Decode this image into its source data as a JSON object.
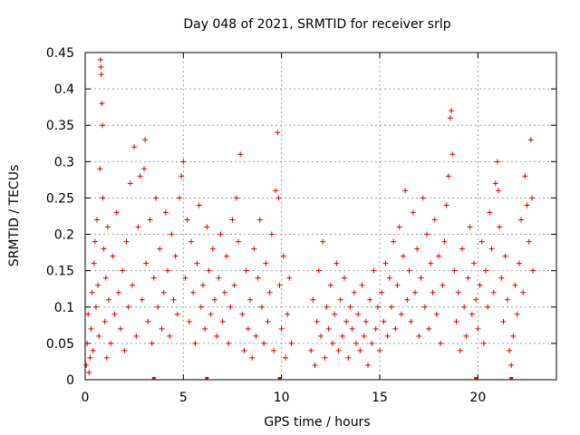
{
  "chart_data": {
    "type": "scatter",
    "title": "Day 048 of 2021, SRMTID for receiver srlp",
    "xlabel": "GPS time / hours",
    "ylabel": "SRMTID / TECUs",
    "xlim": [
      0,
      24
    ],
    "ylim": [
      0,
      0.45
    ],
    "xticks": [
      0,
      5,
      10,
      15,
      20
    ],
    "xtick_labels": [
      "0",
      "5",
      "10",
      "15",
      "20"
    ],
    "yticks": [
      0,
      0.05,
      0.1,
      0.15,
      0.2,
      0.25,
      0.3,
      0.35,
      0.4,
      0.45
    ],
    "ytick_labels": [
      "0",
      "0.05",
      "0.1",
      "0.15",
      "0.2",
      "0.25",
      "0.3",
      "0.35",
      "0.4",
      "0.45"
    ],
    "grid": true,
    "marker": "+",
    "marker_color": "#dd0000",
    "series": [
      {
        "name": "SRMTID",
        "points": [
          [
            0.05,
            0.02
          ],
          [
            0.1,
            0.05
          ],
          [
            0.15,
            0.09
          ],
          [
            0.2,
            0.01
          ],
          [
            0.25,
            0.03
          ],
          [
            0.3,
            0.07
          ],
          [
            0.35,
            0.12
          ],
          [
            0.4,
            0.04
          ],
          [
            0.45,
            0.16
          ],
          [
            0.5,
            0.19
          ],
          [
            0.55,
            0.1
          ],
          [
            0.6,
            0.22
          ],
          [
            0.65,
            0.13
          ],
          [
            0.7,
            0.06
          ],
          [
            0.75,
            0.29
          ],
          [
            0.78,
            0.44
          ],
          [
            0.8,
            0.43
          ],
          [
            0.82,
            0.42
          ],
          [
            0.85,
            0.38
          ],
          [
            0.88,
            0.35
          ],
          [
            0.9,
            0.25
          ],
          [
            0.95,
            0.18
          ],
          [
            1.0,
            0.08
          ],
          [
            1.05,
            0.14
          ],
          [
            1.1,
            0.03
          ],
          [
            1.15,
            0.21
          ],
          [
            1.2,
            0.11
          ],
          [
            1.3,
            0.05
          ],
          [
            1.4,
            0.17
          ],
          [
            1.5,
            0.09
          ],
          [
            1.6,
            0.23
          ],
          [
            1.7,
            0.12
          ],
          [
            1.8,
            0.07
          ],
          [
            1.9,
            0.15
          ],
          [
            2.0,
            0.04
          ],
          [
            2.1,
            0.19
          ],
          [
            2.2,
            0.1
          ],
          [
            2.3,
            0.27
          ],
          [
            2.4,
            0.13
          ],
          [
            2.5,
            0.32
          ],
          [
            2.6,
            0.06
          ],
          [
            2.7,
            0.21
          ],
          [
            2.8,
            0.28
          ],
          [
            2.9,
            0.11
          ],
          [
            3.0,
            0.29
          ],
          [
            3.05,
            0.33
          ],
          [
            3.1,
            0.16
          ],
          [
            3.2,
            0.08
          ],
          [
            3.3,
            0.22
          ],
          [
            3.4,
            0.05
          ],
          [
            3.5,
            0.14
          ],
          [
            3.6,
            0.25
          ],
          [
            3.7,
            0.1
          ],
          [
            3.8,
            0.18
          ],
          [
            3.9,
            0.07
          ],
          [
            4.0,
            0.12
          ],
          [
            4.1,
            0.23
          ],
          [
            4.2,
            0.15
          ],
          [
            4.3,
            0.06
          ],
          [
            4.4,
            0.2
          ],
          [
            4.5,
            0.11
          ],
          [
            4.6,
            0.17
          ],
          [
            4.7,
            0.09
          ],
          [
            4.8,
            0.25
          ],
          [
            4.9,
            0.28
          ],
          [
            5.0,
            0.3
          ],
          [
            5.1,
            0.14
          ],
          [
            5.2,
            0.22
          ],
          [
            5.3,
            0.08
          ],
          [
            5.4,
            0.19
          ],
          [
            5.5,
            0.12
          ],
          [
            5.6,
            0.05
          ],
          [
            5.7,
            0.16
          ],
          [
            5.8,
            0.24
          ],
          [
            5.9,
            0.1
          ],
          [
            6.0,
            0.13
          ],
          [
            6.1,
            0.07
          ],
          [
            6.2,
            0.21
          ],
          [
            6.3,
            0.15
          ],
          [
            6.4,
            0.09
          ],
          [
            6.5,
            0.18
          ],
          [
            6.6,
            0.11
          ],
          [
            6.7,
            0.06
          ],
          [
            6.8,
            0.14
          ],
          [
            6.9,
            0.2
          ],
          [
            7.0,
            0.08
          ],
          [
            7.1,
            0.12
          ],
          [
            7.2,
            0.17
          ],
          [
            7.3,
            0.05
          ],
          [
            7.4,
            0.1
          ],
          [
            7.5,
            0.22
          ],
          [
            7.6,
            0.13
          ],
          [
            7.7,
            0.25
          ],
          [
            7.8,
            0.19
          ],
          [
            7.9,
            0.31
          ],
          [
            8.0,
            0.09
          ],
          [
            8.1,
            0.04
          ],
          [
            8.2,
            0.15
          ],
          [
            8.3,
            0.07
          ],
          [
            8.4,
            0.11
          ],
          [
            8.5,
            0.03
          ],
          [
            8.6,
            0.18
          ],
          [
            8.7,
            0.06
          ],
          [
            8.8,
            0.14
          ],
          [
            8.9,
            0.22
          ],
          [
            9.0,
            0.1
          ],
          [
            9.1,
            0.05
          ],
          [
            9.2,
            0.16
          ],
          [
            9.3,
            0.08
          ],
          [
            9.4,
            0.12
          ],
          [
            9.5,
            0.2
          ],
          [
            9.6,
            0.04
          ],
          [
            9.7,
            0.26
          ],
          [
            9.8,
            0.34
          ],
          [
            9.85,
            0.25
          ],
          [
            9.9,
            0.13
          ],
          [
            10.0,
            0.07
          ],
          [
            10.1,
            0.17
          ],
          [
            10.2,
            0.03
          ],
          [
            10.3,
            0.09
          ],
          [
            10.4,
            0.14
          ],
          [
            10.5,
            0.05
          ],
          [
            11.5,
            0.04
          ],
          [
            11.6,
            0.11
          ],
          [
            11.7,
            0.02
          ],
          [
            11.8,
            0.08
          ],
          [
            11.9,
            0.15
          ],
          [
            12.0,
            0.06
          ],
          [
            12.1,
            0.19
          ],
          [
            12.2,
            0.03
          ],
          [
            12.3,
            0.1
          ],
          [
            12.4,
            0.07
          ],
          [
            12.5,
            0.13
          ],
          [
            12.6,
            0.05
          ],
          [
            12.7,
            0.09
          ],
          [
            12.8,
            0.16
          ],
          [
            12.9,
            0.04
          ],
          [
            13.0,
            0.11
          ],
          [
            13.1,
            0.06
          ],
          [
            13.2,
            0.14
          ],
          [
            13.3,
            0.08
          ],
          [
            13.4,
            0.03
          ],
          [
            13.5,
            0.1
          ],
          [
            13.6,
            0.07
          ],
          [
            13.7,
            0.12
          ],
          [
            13.8,
            0.05
          ],
          [
            13.9,
            0.09
          ],
          [
            14.0,
            0.04
          ],
          [
            14.1,
            0.13
          ],
          [
            14.2,
            0.06
          ],
          [
            14.3,
            0.08
          ],
          [
            14.4,
            0.02
          ],
          [
            14.5,
            0.11
          ],
          [
            14.6,
            0.05
          ],
          [
            14.7,
            0.15
          ],
          [
            14.8,
            0.07
          ],
          [
            14.9,
            0.1
          ],
          [
            15.0,
            0.04
          ],
          [
            15.1,
            0.12
          ],
          [
            15.2,
            0.08
          ],
          [
            15.3,
            0.16
          ],
          [
            15.4,
            0.06
          ],
          [
            15.5,
            0.14
          ],
          [
            15.6,
            0.1
          ],
          [
            15.7,
            0.19
          ],
          [
            15.8,
            0.07
          ],
          [
            15.9,
            0.13
          ],
          [
            16.0,
            0.21
          ],
          [
            16.1,
            0.09
          ],
          [
            16.2,
            0.17
          ],
          [
            16.3,
            0.26
          ],
          [
            16.4,
            0.11
          ],
          [
            16.5,
            0.15
          ],
          [
            16.6,
            0.08
          ],
          [
            16.7,
            0.23
          ],
          [
            16.8,
            0.12
          ],
          [
            16.9,
            0.18
          ],
          [
            17.0,
            0.06
          ],
          [
            17.1,
            0.14
          ],
          [
            17.2,
            0.25
          ],
          [
            17.3,
            0.1
          ],
          [
            17.4,
            0.2
          ],
          [
            17.5,
            0.07
          ],
          [
            17.6,
            0.16
          ],
          [
            17.7,
            0.12
          ],
          [
            17.8,
            0.22
          ],
          [
            17.9,
            0.09
          ],
          [
            18.0,
            0.17
          ],
          [
            18.1,
            0.05
          ],
          [
            18.2,
            0.13
          ],
          [
            18.3,
            0.19
          ],
          [
            18.4,
            0.24
          ],
          [
            18.5,
            0.28
          ],
          [
            18.6,
            0.36
          ],
          [
            18.65,
            0.37
          ],
          [
            18.7,
            0.31
          ],
          [
            18.8,
            0.15
          ],
          [
            18.9,
            0.08
          ],
          [
            19.0,
            0.12
          ],
          [
            19.1,
            0.04
          ],
          [
            19.2,
            0.18
          ],
          [
            19.3,
            0.1
          ],
          [
            19.4,
            0.06
          ],
          [
            19.5,
            0.14
          ],
          [
            19.6,
            0.21
          ],
          [
            19.7,
            0.09
          ],
          [
            19.8,
            0.16
          ],
          [
            19.9,
            0.11
          ],
          [
            20.0,
            0.07
          ],
          [
            20.1,
            0.13
          ],
          [
            20.2,
            0.19
          ],
          [
            20.3,
            0.05
          ],
          [
            20.4,
            0.15
          ],
          [
            20.5,
            0.1
          ],
          [
            20.6,
            0.23
          ],
          [
            20.7,
            0.18
          ],
          [
            20.8,
            0.12
          ],
          [
            20.9,
            0.27
          ],
          [
            21.0,
            0.3
          ],
          [
            21.05,
            0.26
          ],
          [
            21.1,
            0.21
          ],
          [
            21.2,
            0.14
          ],
          [
            21.3,
            0.08
          ],
          [
            21.4,
            0.17
          ],
          [
            21.5,
            0.11
          ],
          [
            21.6,
            0.04
          ],
          [
            21.7,
            0.02
          ],
          [
            21.8,
            0.06
          ],
          [
            21.9,
            0.13
          ],
          [
            22.0,
            0.09
          ],
          [
            22.1,
            0.16
          ],
          [
            22.2,
            0.22
          ],
          [
            22.3,
            0.12
          ],
          [
            22.4,
            0.28
          ],
          [
            22.5,
            0.24
          ],
          [
            22.6,
            0.19
          ],
          [
            22.7,
            0.33
          ],
          [
            22.75,
            0.25
          ],
          [
            22.8,
            0.15
          ]
        ]
      }
    ],
    "baseline_markers_x": [
      3.5,
      6.2,
      9.9,
      19.9,
      21.7
    ]
  }
}
